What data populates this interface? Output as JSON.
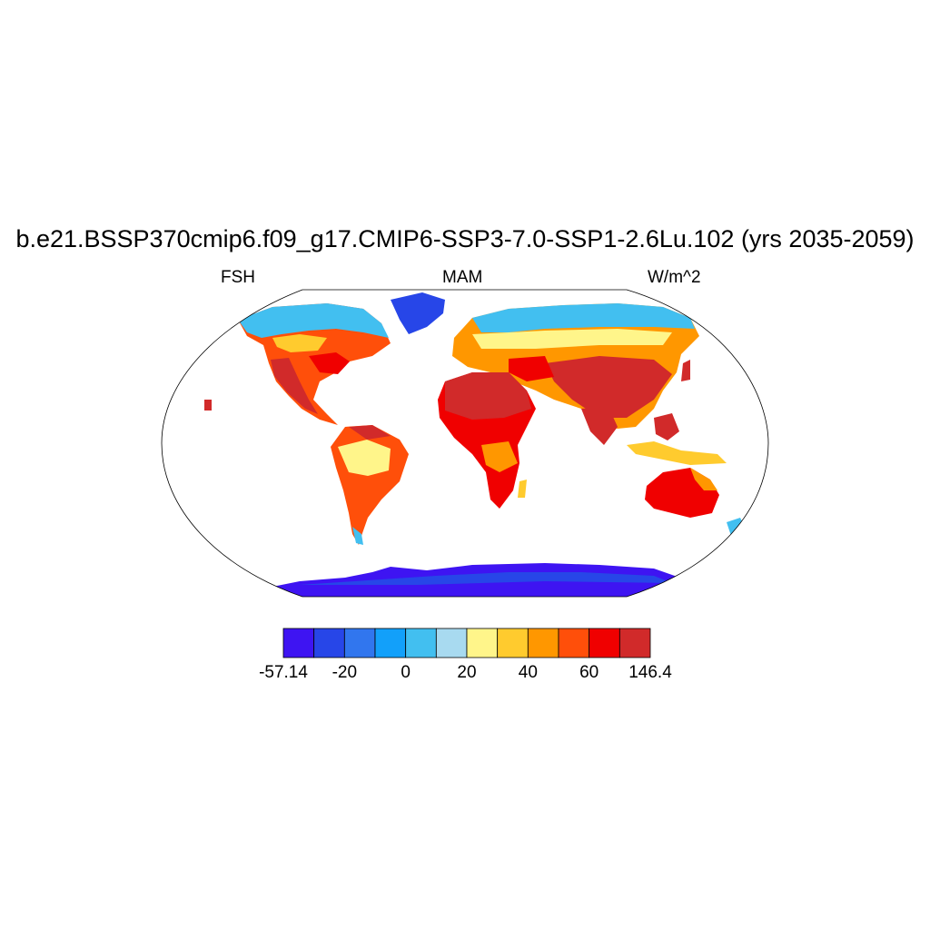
{
  "title": "b.e21.BSSP370cmip6.f09_g17.CMIP6-SSP3-7.0-SSP1-2.6Lu.102 (yrs 2035-2059)",
  "left_label": "FSH",
  "center_label": "MAM",
  "right_label": "W/m^2",
  "colorbar": {
    "colors": [
      "#3e14f2",
      "#2746e8",
      "#3176ee",
      "#12a0fa",
      "#42bff0",
      "#a8daf0",
      "#fff58a",
      "#ffcb2e",
      "#ff9700",
      "#ff4f0a",
      "#f00000",
      "#d12a2a"
    ],
    "tick_labels": [
      "-57.14",
      "-20",
      "0",
      "20",
      "40",
      "60",
      "146.4"
    ]
  }
}
